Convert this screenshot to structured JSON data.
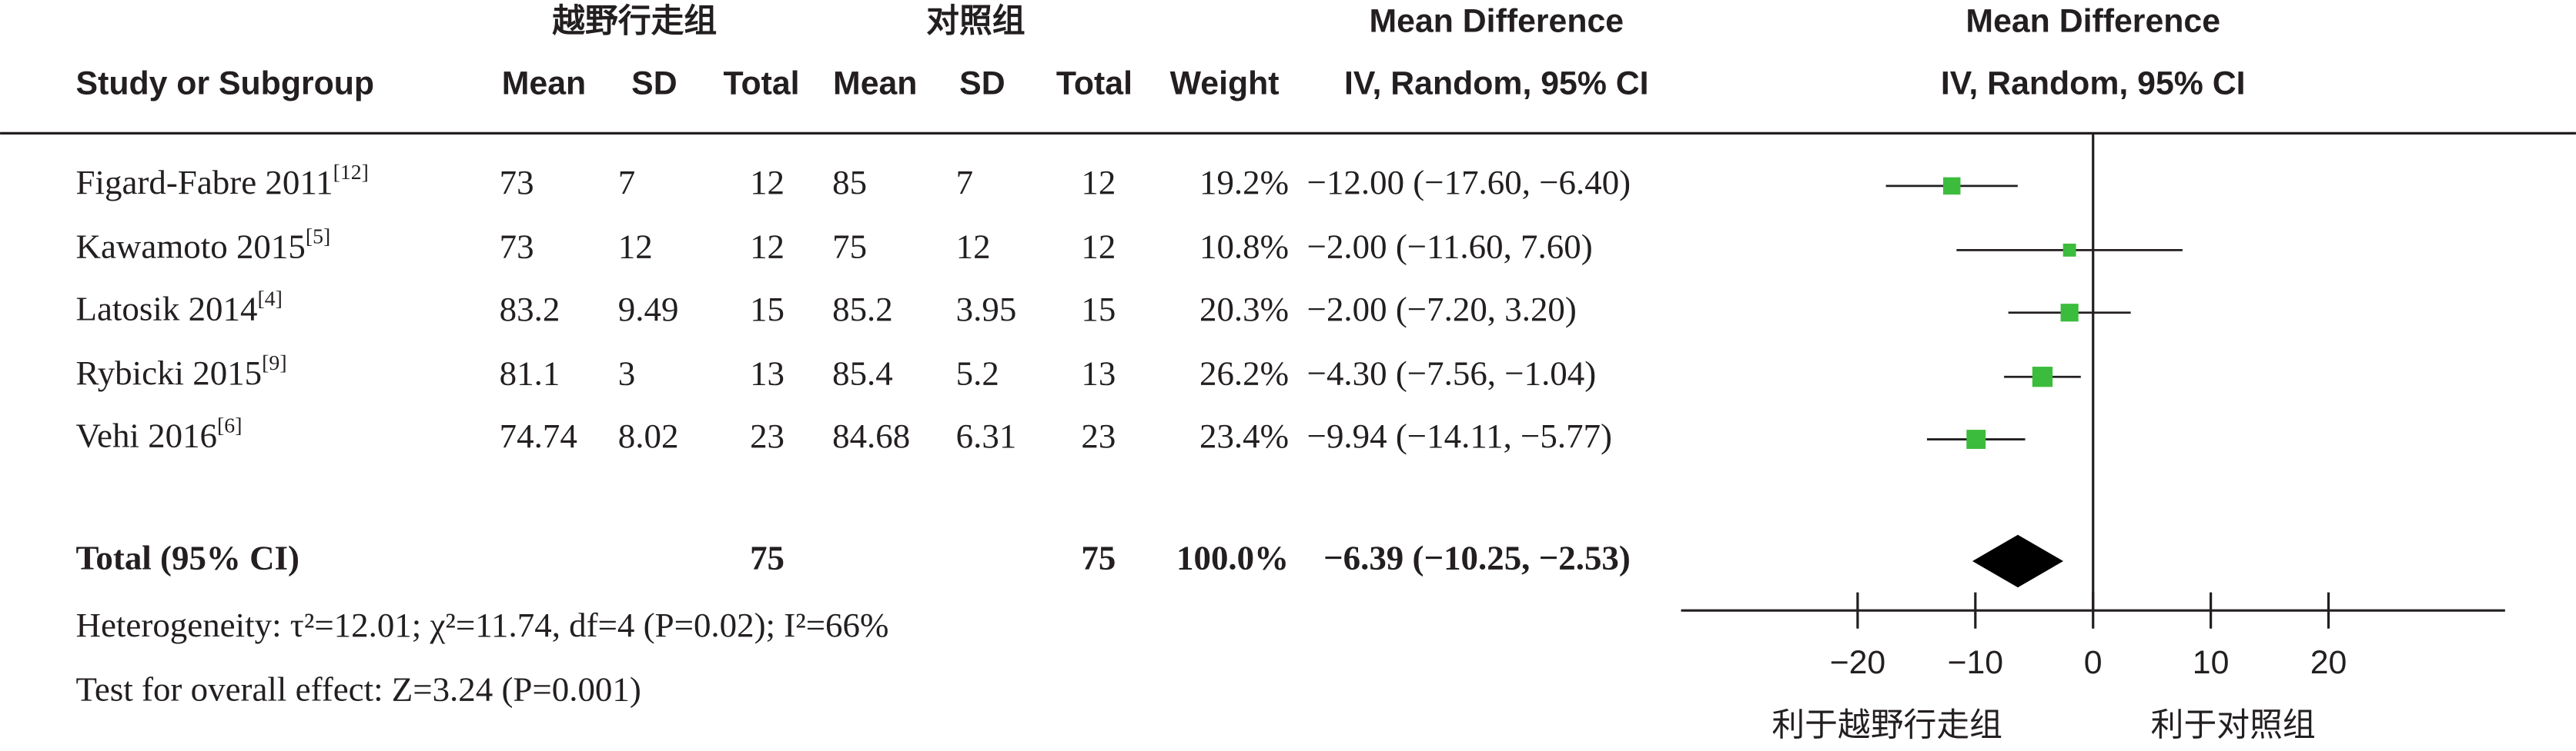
{
  "chart_data": {
    "type": "forest",
    "group_labels": [
      "越野行走组",
      "对照组"
    ],
    "columns": [
      "Study or Subgroup",
      "Mean",
      "SD",
      "Total",
      "Mean",
      "SD",
      "Total",
      "Weight"
    ],
    "effect_header": [
      "Mean Difference",
      "IV, Random, 95% CI"
    ],
    "plot_header": [
      "Mean Difference",
      "IV, Random, 95% CI"
    ],
    "marker_color": "#3cbc3c",
    "studies": [
      {
        "name": "Figard-Fabre 2011",
        "ref": "[12]",
        "exp_mean": 73,
        "exp_sd": 7,
        "exp_total": 12,
        "ctrl_mean": 85,
        "ctrl_sd": 7,
        "ctrl_total": 12,
        "weight": 19.2,
        "weight_label": "19.2%",
        "md": -12.0,
        "lower": -17.6,
        "upper": -6.4,
        "ci_label": "−12.00 (−17.60, −6.40)"
      },
      {
        "name": "Kawamoto 2015",
        "ref": "[5]",
        "exp_mean": 73,
        "exp_sd": 12,
        "exp_total": 12,
        "ctrl_mean": 75,
        "ctrl_sd": 12,
        "ctrl_total": 12,
        "weight": 10.8,
        "weight_label": "10.8%",
        "md": -2.0,
        "lower": -11.6,
        "upper": 7.6,
        "ci_label": "−2.00 (−11.60, 7.60)"
      },
      {
        "name": "Latosik 2014",
        "ref": "[4]",
        "exp_mean": 83.2,
        "exp_sd": 9.49,
        "exp_total": 15,
        "ctrl_mean": 85.2,
        "ctrl_sd": 3.95,
        "ctrl_total": 15,
        "weight": 20.3,
        "weight_label": "20.3%",
        "md": -2.0,
        "lower": -7.2,
        "upper": 3.2,
        "ci_label": "−2.00 (−7.20, 3.20)"
      },
      {
        "name": "Rybicki 2015",
        "ref": "[9]",
        "exp_mean": 81.1,
        "exp_sd": 3,
        "exp_total": 13,
        "ctrl_mean": 85.4,
        "ctrl_sd": 5.2,
        "ctrl_total": 13,
        "weight": 26.2,
        "weight_label": "26.2%",
        "md": -4.3,
        "lower": -7.56,
        "upper": -1.04,
        "ci_label": "−4.30 (−7.56, −1.04)"
      },
      {
        "name": "Vehi 2016",
        "ref": "[6]",
        "exp_mean": 74.74,
        "exp_sd": 8.02,
        "exp_total": 23,
        "ctrl_mean": 84.68,
        "ctrl_sd": 6.31,
        "ctrl_total": 23,
        "weight": 23.4,
        "weight_label": "23.4%",
        "md": -9.94,
        "lower": -14.11,
        "upper": -5.77,
        "ci_label": "−9.94 (−14.11, −5.77)"
      }
    ],
    "total": {
      "name": "Total (95% CI)",
      "exp_total": 75,
      "ctrl_total": 75,
      "weight": 100,
      "weight_label": "100.0%",
      "md": -6.39,
      "lower": -10.25,
      "upper": -2.53,
      "ci_label": "−6.39 (−10.25, −2.53)"
    },
    "footnotes": [
      "Heterogeneity: τ²=12.01; χ²=11.74, df=4 (P=0.02); I²=66%",
      "Test for overall effect: Z=3.24 (P=0.001)"
    ],
    "xlim": [
      -35,
      35
    ],
    "xticks": [
      {
        "value": -20,
        "label": "−20"
      },
      {
        "value": -10,
        "label": "−10"
      },
      0,
      10,
      20
    ],
    "axis_labels": [
      "利于越野行走组",
      "利于对照组"
    ]
  }
}
